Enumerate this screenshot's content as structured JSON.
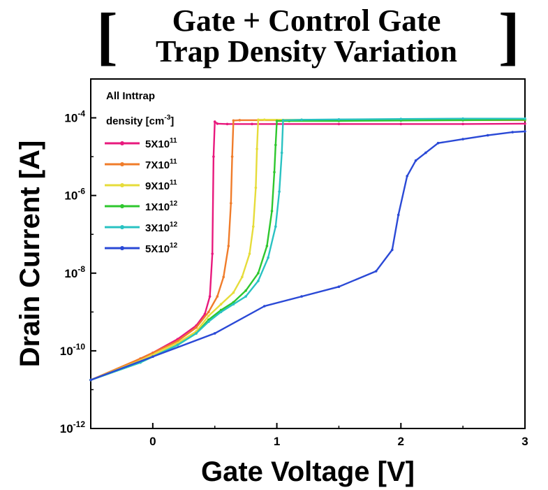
{
  "title": {
    "line1": "Gate + Control Gate",
    "line2": "Trap Density Variation",
    "bracket_left": "[",
    "bracket_right": "]"
  },
  "chart_data": {
    "type": "line",
    "title": "Gate + Control Gate Trap Density Variation",
    "xlabel": "Gate Voltage [V]",
    "ylabel": "Drain Current [A]",
    "xlim": [
      -0.5,
      3
    ],
    "ylim_exp": [
      -12,
      -3
    ],
    "y_scale": "log",
    "x_ticks": [
      {
        "value": 0,
        "label": "0"
      },
      {
        "value": 1,
        "label": "1"
      },
      {
        "value": 2,
        "label": "2"
      },
      {
        "value": 3,
        "label": "3"
      }
    ],
    "y_ticks": [
      {
        "exp": -12,
        "base": "10",
        "sup": "-12"
      },
      {
        "exp": -10,
        "base": "10",
        "sup": "-10"
      },
      {
        "exp": -8,
        "base": "10",
        "sup": "-8"
      },
      {
        "exp": -6,
        "base": "10",
        "sup": "-6"
      },
      {
        "exp": -4,
        "base": "10",
        "sup": "-4"
      }
    ],
    "legend": {
      "placement": "top-left",
      "title_line1": "All Inttrap",
      "title_line2": "density [cm",
      "title_sup": "-3",
      "title_end": "]"
    },
    "series": [
      {
        "label_base": "5X10",
        "label_sup": "11",
        "color": "#e8197d",
        "x": [
          -0.5,
          -0.3,
          -0.1,
          0.0,
          0.2,
          0.35,
          0.42,
          0.46,
          0.48,
          0.49,
          0.5,
          0.52,
          0.6,
          0.8,
          1.0,
          1.5,
          2.0,
          2.5,
          3.0
        ],
        "y_exp": [
          -10.75,
          -10.5,
          -10.2,
          -10.05,
          -9.7,
          -9.35,
          -9.05,
          -8.6,
          -7.5,
          -5.0,
          -4.1,
          -4.15,
          -4.16,
          -4.16,
          -4.16,
          -4.16,
          -4.16,
          -4.16,
          -4.15
        ]
      },
      {
        "label_base": "7X10",
        "label_sup": "11",
        "color": "#f07c2a",
        "x": [
          -0.5,
          -0.1,
          0.2,
          0.35,
          0.45,
          0.52,
          0.57,
          0.61,
          0.63,
          0.64,
          0.65,
          0.7,
          1.0,
          1.5,
          2.0,
          2.5,
          3.0
        ],
        "y_exp": [
          -10.75,
          -10.2,
          -9.75,
          -9.4,
          -9.0,
          -8.6,
          -8.1,
          -7.3,
          -6.2,
          -5.0,
          -4.07,
          -4.06,
          -4.06,
          -4.06,
          -4.06,
          -4.06,
          -4.06
        ]
      },
      {
        "label_base": "9X10",
        "label_sup": "11",
        "color": "#e6dc3a",
        "x": [
          -0.5,
          -0.1,
          0.2,
          0.35,
          0.45,
          0.55,
          0.65,
          0.72,
          0.78,
          0.81,
          0.83,
          0.84,
          0.85,
          0.9,
          1.2,
          1.5,
          2.0,
          2.5,
          3.0
        ],
        "y_exp": [
          -10.75,
          -10.25,
          -9.8,
          -9.5,
          -9.1,
          -8.8,
          -8.5,
          -8.1,
          -7.5,
          -6.8,
          -5.8,
          -4.8,
          -4.05,
          -4.05,
          -4.05,
          -4.05,
          -4.05,
          -4.05,
          -4.05
        ]
      },
      {
        "label_base": "1X10",
        "label_sup": "12",
        "color": "#2ec72e",
        "x": [
          -0.5,
          -0.1,
          0.2,
          0.35,
          0.45,
          0.55,
          0.65,
          0.75,
          0.85,
          0.92,
          0.96,
          0.98,
          0.99,
          1.0,
          1.1,
          1.5,
          2.0,
          2.5,
          3.0
        ],
        "y_exp": [
          -10.75,
          -10.3,
          -9.85,
          -9.55,
          -9.2,
          -8.95,
          -8.75,
          -8.45,
          -8.0,
          -7.3,
          -6.4,
          -5.4,
          -4.7,
          -4.08,
          -4.08,
          -4.08,
          -4.07,
          -4.06,
          -4.05
        ]
      },
      {
        "label_base": "3X10",
        "label_sup": "12",
        "color": "#29c2c2",
        "x": [
          -0.5,
          -0.1,
          0.2,
          0.35,
          0.45,
          0.55,
          0.65,
          0.75,
          0.85,
          0.93,
          0.99,
          1.02,
          1.04,
          1.05,
          1.2,
          1.5,
          2.0,
          2.5,
          3.0
        ],
        "y_exp": [
          -10.75,
          -10.3,
          -9.85,
          -9.55,
          -9.25,
          -9.0,
          -8.8,
          -8.6,
          -8.2,
          -7.6,
          -6.8,
          -5.9,
          -4.9,
          -4.06,
          -4.05,
          -4.04,
          -4.03,
          -4.02,
          -4.02
        ]
      },
      {
        "label_base": "5X10",
        "label_sup": "12",
        "color": "#2a49d6",
        "x": [
          -0.5,
          0.0,
          0.5,
          0.9,
          1.2,
          1.5,
          1.8,
          1.93,
          1.98,
          2.05,
          2.12,
          2.2,
          2.3,
          2.5,
          2.7,
          2.9,
          3.0
        ],
        "y_exp": [
          -10.75,
          -10.15,
          -9.55,
          -8.85,
          -8.6,
          -8.35,
          -7.95,
          -7.4,
          -6.5,
          -5.5,
          -5.1,
          -4.9,
          -4.65,
          -4.55,
          -4.45,
          -4.37,
          -4.35
        ]
      }
    ]
  }
}
